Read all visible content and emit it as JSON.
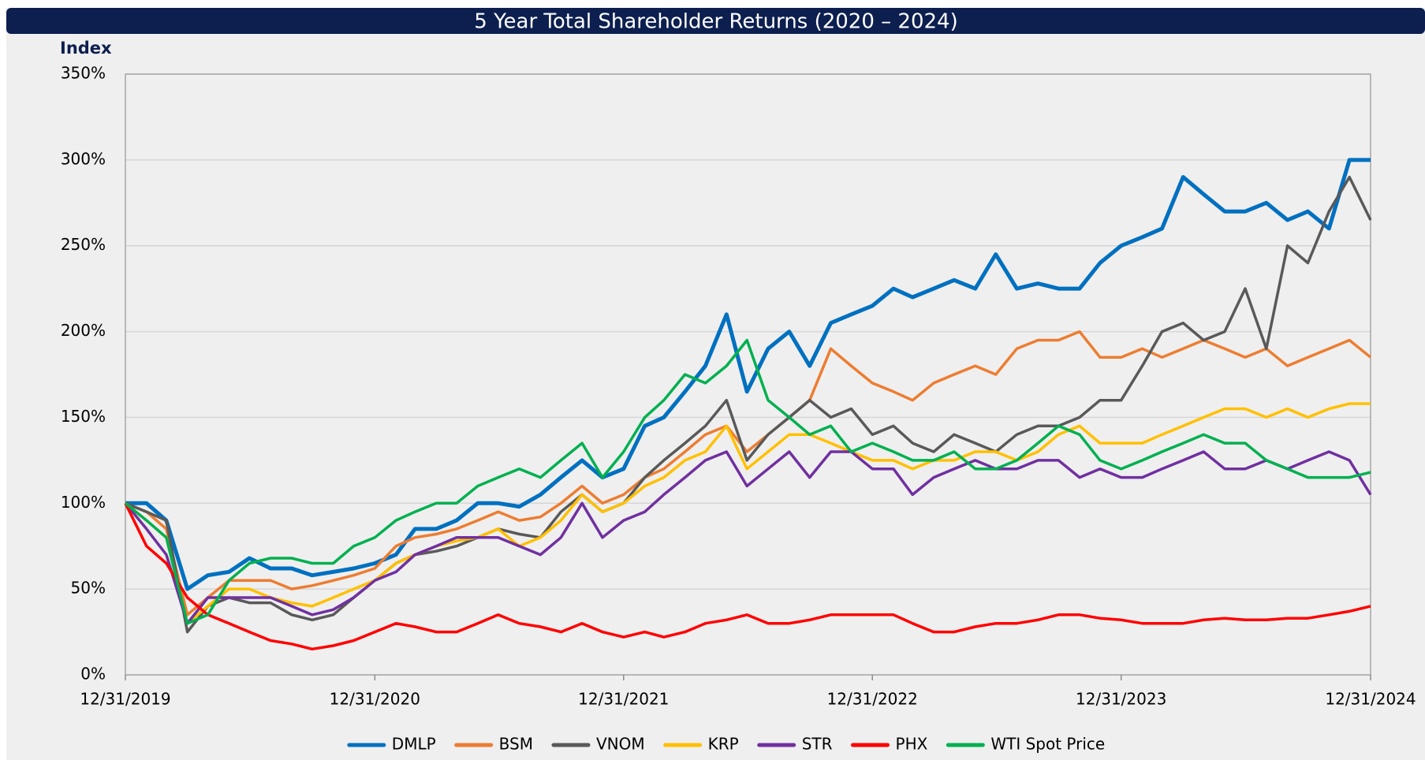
{
  "chart_data": {
    "type": "line",
    "title": "5 Year Total Shareholder Returns (2020 – 2024)",
    "y_label": "Index",
    "x": [
      "12/31/2019",
      "1/31/2020",
      "2/29/2020",
      "3/31/2020",
      "4/30/2020",
      "5/31/2020",
      "6/30/2020",
      "7/31/2020",
      "8/31/2020",
      "9/30/2020",
      "10/31/2020",
      "11/30/2020",
      "12/31/2020",
      "1/31/2021",
      "2/28/2021",
      "3/31/2021",
      "4/30/2021",
      "5/31/2021",
      "6/30/2021",
      "7/31/2021",
      "8/31/2021",
      "9/30/2021",
      "10/31/2021",
      "11/30/2021",
      "12/31/2021",
      "1/31/2022",
      "2/28/2022",
      "3/31/2022",
      "4/30/2022",
      "5/31/2022",
      "6/30/2022",
      "7/31/2022",
      "8/31/2022",
      "9/30/2022",
      "10/31/2022",
      "11/30/2022",
      "12/31/2022",
      "1/31/2023",
      "2/28/2023",
      "3/31/2023",
      "4/30/2023",
      "5/31/2023",
      "6/30/2023",
      "7/31/2023",
      "8/31/2023",
      "9/30/2023",
      "10/31/2023",
      "11/30/2023",
      "12/31/2023",
      "1/31/2024",
      "2/29/2024",
      "3/31/2024",
      "4/30/2024",
      "5/31/2024",
      "6/30/2024",
      "7/31/2024",
      "8/31/2024",
      "9/30/2024",
      "10/31/2024",
      "11/30/2024",
      "12/31/2024"
    ],
    "series": [
      {
        "name": "DMLP",
        "color": "#0070c0",
        "values": [
          100,
          100,
          90,
          50,
          58,
          60,
          68,
          62,
          62,
          58,
          60,
          62,
          65,
          70,
          85,
          85,
          90,
          100,
          100,
          98,
          105,
          115,
          125,
          115,
          120,
          145,
          150,
          165,
          180,
          210,
          165,
          190,
          200,
          180,
          205,
          210,
          215,
          225,
          220,
          225,
          230,
          225,
          245,
          225,
          228,
          225,
          225,
          240,
          250,
          255,
          260,
          290,
          280,
          270,
          270,
          275,
          265,
          270,
          260,
          300,
          300
        ]
      },
      {
        "name": "BSM",
        "color": "#ed7d31",
        "values": [
          100,
          95,
          85,
          35,
          45,
          55,
          55,
          55,
          50,
          52,
          55,
          58,
          62,
          75,
          80,
          82,
          85,
          90,
          95,
          90,
          92,
          100,
          110,
          100,
          105,
          115,
          120,
          130,
          140,
          145,
          130,
          140,
          150,
          160,
          190,
          180,
          170,
          165,
          160,
          170,
          175,
          180,
          175,
          190,
          195,
          195,
          200,
          185,
          185,
          190,
          185,
          190,
          195,
          190,
          185,
          190,
          180,
          185,
          190,
          195,
          185
        ]
      },
      {
        "name": "VNOM",
        "color": "#595959",
        "values": [
          100,
          95,
          90,
          25,
          40,
          45,
          42,
          42,
          35,
          32,
          35,
          45,
          55,
          65,
          70,
          72,
          75,
          80,
          85,
          82,
          80,
          95,
          105,
          95,
          100,
          115,
          125,
          135,
          145,
          160,
          125,
          140,
          150,
          160,
          150,
          155,
          140,
          145,
          135,
          130,
          140,
          135,
          130,
          140,
          145,
          145,
          150,
          160,
          160,
          180,
          200,
          205,
          195,
          200,
          225,
          190,
          250,
          240,
          270,
          290,
          265
        ]
      },
      {
        "name": "KRP",
        "color": "#ffc000",
        "values": [
          100,
          90,
          80,
          30,
          40,
          50,
          50,
          45,
          42,
          40,
          45,
          50,
          55,
          65,
          70,
          75,
          78,
          80,
          85,
          75,
          80,
          90,
          105,
          95,
          100,
          110,
          115,
          125,
          130,
          145,
          120,
          130,
          140,
          140,
          135,
          130,
          125,
          125,
          120,
          125,
          125,
          130,
          130,
          125,
          130,
          140,
          145,
          135,
          135,
          135,
          140,
          145,
          150,
          155,
          155,
          150,
          155,
          150,
          155,
          158,
          158
        ]
      },
      {
        "name": "STR",
        "color": "#7030a0",
        "values": [
          100,
          85,
          70,
          30,
          45,
          45,
          45,
          45,
          40,
          35,
          38,
          45,
          55,
          60,
          70,
          75,
          80,
          80,
          80,
          75,
          70,
          80,
          100,
          80,
          90,
          95,
          105,
          115,
          125,
          130,
          110,
          120,
          130,
          115,
          130,
          130,
          120,
          120,
          105,
          115,
          120,
          125,
          120,
          120,
          125,
          125,
          115,
          120,
          115,
          115,
          120,
          125,
          130,
          120,
          120,
          125,
          120,
          125,
          130,
          125,
          105
        ]
      },
      {
        "name": "PHX",
        "color": "#ff0000",
        "values": [
          100,
          75,
          65,
          45,
          35,
          30,
          25,
          20,
          18,
          15,
          17,
          20,
          25,
          30,
          28,
          25,
          25,
          30,
          35,
          30,
          28,
          25,
          30,
          25,
          22,
          25,
          22,
          25,
          30,
          32,
          35,
          30,
          30,
          32,
          35,
          35,
          35,
          35,
          30,
          25,
          25,
          28,
          30,
          30,
          32,
          35,
          35,
          33,
          32,
          30,
          30,
          30,
          32,
          33,
          32,
          32,
          33,
          33,
          35,
          37,
          40
        ]
      },
      {
        "name": "WTI Spot Price",
        "color": "#00b050",
        "values": [
          100,
          90,
          80,
          30,
          35,
          55,
          65,
          68,
          68,
          65,
          65,
          75,
          80,
          90,
          95,
          100,
          100,
          110,
          115,
          120,
          115,
          125,
          135,
          115,
          130,
          150,
          160,
          175,
          170,
          180,
          195,
          160,
          150,
          140,
          145,
          130,
          135,
          130,
          125,
          125,
          130,
          120,
          120,
          125,
          135,
          145,
          140,
          125,
          120,
          125,
          130,
          135,
          140,
          135,
          135,
          125,
          120,
          115,
          115,
          115,
          118
        ]
      }
    ],
    "xlim": [
      "12/31/2019",
      "12/31/2024"
    ],
    "xticks": [
      "12/31/2019",
      "12/31/2020",
      "12/31/2021",
      "12/31/2022",
      "12/31/2023",
      "12/31/2024"
    ],
    "ylim": [
      0,
      350
    ],
    "yticks": [
      {
        "value": 0,
        "label": "0%"
      },
      {
        "value": 50,
        "label": "50%"
      },
      {
        "value": 100,
        "label": "100%"
      },
      {
        "value": 150,
        "label": "150%"
      },
      {
        "value": 200,
        "label": "200%"
      },
      {
        "value": 250,
        "label": "250%"
      },
      {
        "value": 300,
        "label": "300%"
      },
      {
        "value": 350,
        "label": "350%"
      }
    ],
    "grid": true,
    "legend": "bottom"
  }
}
